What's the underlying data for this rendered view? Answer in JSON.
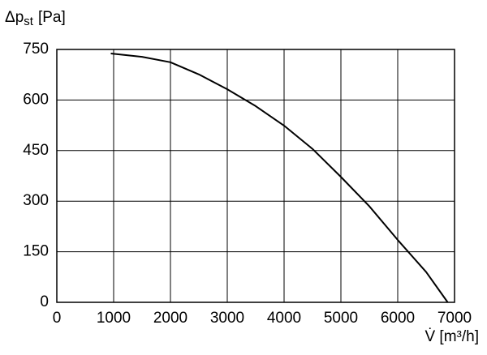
{
  "chart_data": {
    "type": "line",
    "y_label": {
      "main": "Δp",
      "subscript": "st",
      "unit": "[Pa]"
    },
    "x_label": "V̇ [m³/h]",
    "x": [
      950,
      1000,
      1500,
      2000,
      2500,
      3000,
      3500,
      4000,
      4500,
      5000,
      5500,
      6000,
      6500,
      6880
    ],
    "values": [
      738,
      737,
      728,
      712,
      676,
      632,
      582,
      524,
      455,
      372,
      285,
      185,
      90,
      0
    ],
    "color": "#000000",
    "xlim": [
      0,
      7000
    ],
    "xticks": [
      0,
      1000,
      2000,
      3000,
      4000,
      5000,
      6000,
      7000
    ],
    "ylim": [
      0,
      750
    ],
    "yticks": [
      0,
      150,
      300,
      450,
      600,
      750
    ],
    "grid": true
  }
}
